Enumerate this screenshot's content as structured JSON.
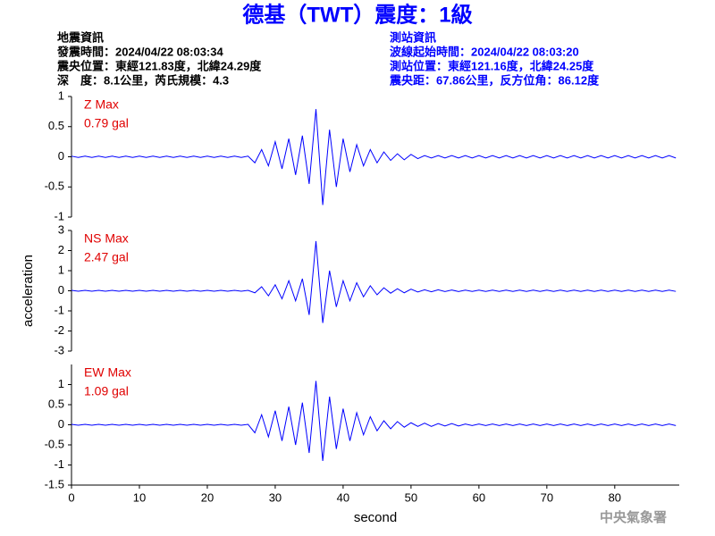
{
  "header": {
    "title": "德基（TWT）震度：1級",
    "left": [
      "地震資訊",
      "發震時間：2024/04/22 08:03:34",
      "震央位置：東經121.83度，北緯24.29度",
      "深　度：8.1公里，芮氏規模：4.3"
    ],
    "right": [
      "測站資訊",
      "波線起始時間：2024/04/22 08:03:20",
      "測站位置：東經121.16度，北緯24.25度",
      "震央距：67.86公里，反方位角：86.12度"
    ]
  },
  "footer": "中央氣象署",
  "chart_data": [
    {
      "type": "line",
      "annotations": [
        "Z Max",
        "0.79 gal"
      ],
      "color": "#0000ff",
      "xlim": [
        0,
        89.5
      ],
      "ylim": [
        -1,
        1
      ],
      "yticks": [
        -1,
        -0.5,
        0,
        0.5,
        1
      ],
      "x": [
        0,
        1,
        2,
        3,
        4,
        5,
        6,
        7,
        8,
        9,
        10,
        11,
        12,
        13,
        14,
        15,
        16,
        17,
        18,
        19,
        20,
        21,
        22,
        23,
        24,
        25,
        26,
        27,
        28,
        29,
        30,
        31,
        32,
        33,
        34,
        35,
        36,
        37,
        38,
        39,
        40,
        41,
        42,
        43,
        44,
        45,
        46,
        47,
        48,
        49,
        50,
        51,
        52,
        53,
        54,
        55,
        56,
        57,
        58,
        59,
        60,
        61,
        62,
        63,
        64,
        65,
        66,
        67,
        68,
        69,
        70,
        71,
        72,
        73,
        74,
        75,
        76,
        77,
        78,
        79,
        80,
        81,
        82,
        83,
        84,
        85,
        86,
        87,
        88,
        89
      ],
      "values": [
        0.01,
        -0.01,
        0.01,
        -0.01,
        0.01,
        -0.01,
        0.01,
        -0.01,
        0.01,
        -0.01,
        0.01,
        -0.01,
        0.01,
        -0.01,
        0.01,
        -0.01,
        0.01,
        -0.01,
        0.01,
        -0.01,
        0.01,
        -0.01,
        0.01,
        -0.01,
        0.01,
        -0.01,
        0.01,
        -0.1,
        0.12,
        -0.15,
        0.25,
        -0.2,
        0.3,
        -0.3,
        0.35,
        -0.45,
        0.79,
        -0.8,
        0.45,
        -0.5,
        0.3,
        -0.25,
        0.2,
        -0.15,
        0.12,
        -0.1,
        0.08,
        -0.06,
        0.05,
        -0.05,
        0.04,
        -0.03,
        0.02,
        -0.02,
        0.02,
        -0.02,
        0.02,
        -0.02,
        0.02,
        -0.02,
        0.02,
        -0.02,
        0.02,
        -0.02,
        0.02,
        -0.02,
        0.02,
        -0.02,
        0.02,
        -0.02,
        0.02,
        -0.02,
        0.02,
        -0.02,
        0.02,
        -0.02,
        0.02,
        -0.02,
        0.02,
        -0.02,
        0.02,
        -0.02,
        0.02,
        -0.02,
        0.02,
        -0.02,
        0.02,
        -0.02,
        0.02,
        -0.02
      ]
    },
    {
      "type": "line",
      "annotations": [
        "NS Max",
        "2.47 gal"
      ],
      "color": "#0000ff",
      "xlim": [
        0,
        89.5
      ],
      "ylim": [
        -3,
        3
      ],
      "yticks": [
        -3,
        -2,
        -1,
        0,
        1,
        2,
        3
      ],
      "ylabel": "acceleration",
      "x": [
        0,
        1,
        2,
        3,
        4,
        5,
        6,
        7,
        8,
        9,
        10,
        11,
        12,
        13,
        14,
        15,
        16,
        17,
        18,
        19,
        20,
        21,
        22,
        23,
        24,
        25,
        26,
        27,
        28,
        29,
        30,
        31,
        32,
        33,
        34,
        35,
        36,
        37,
        38,
        39,
        40,
        41,
        42,
        43,
        44,
        45,
        46,
        47,
        48,
        49,
        50,
        51,
        52,
        53,
        54,
        55,
        56,
        57,
        58,
        59,
        60,
        61,
        62,
        63,
        64,
        65,
        66,
        67,
        68,
        69,
        70,
        71,
        72,
        73,
        74,
        75,
        76,
        77,
        78,
        79,
        80,
        81,
        82,
        83,
        84,
        85,
        86,
        87,
        88,
        89
      ],
      "values": [
        0.02,
        -0.02,
        0.02,
        -0.02,
        0.02,
        -0.02,
        0.02,
        -0.02,
        0.02,
        -0.02,
        0.02,
        -0.02,
        0.02,
        -0.02,
        0.02,
        -0.02,
        0.02,
        -0.02,
        0.02,
        -0.02,
        0.02,
        -0.02,
        0.02,
        -0.02,
        0.02,
        -0.02,
        0.02,
        -0.1,
        0.2,
        -0.25,
        0.3,
        -0.4,
        0.5,
        -0.5,
        0.6,
        -1.2,
        2.47,
        -1.6,
        1.0,
        -0.8,
        0.5,
        -0.5,
        0.4,
        -0.3,
        0.25,
        -0.2,
        0.15,
        -0.12,
        0.1,
        -0.1,
        0.08,
        -0.06,
        0.05,
        -0.05,
        0.05,
        -0.04,
        0.04,
        -0.04,
        0.03,
        -0.03,
        0.03,
        -0.03,
        0.03,
        -0.03,
        0.03,
        -0.03,
        0.03,
        -0.03,
        0.03,
        -0.03,
        0.03,
        -0.03,
        0.03,
        -0.03,
        0.03,
        -0.03,
        0.03,
        -0.03,
        0.03,
        -0.03,
        0.03,
        -0.03,
        0.03,
        -0.03,
        0.03,
        -0.03,
        0.03,
        -0.03,
        0.03,
        -0.03
      ]
    },
    {
      "type": "line",
      "annotations": [
        "EW Max",
        "1.09 gal"
      ],
      "color": "#0000ff",
      "xlim": [
        0,
        89.5
      ],
      "ylim": [
        -1.5,
        1.5
      ],
      "yticks": [
        -1.5,
        -1,
        -0.5,
        0,
        0.5,
        1
      ],
      "xticks": [
        0,
        10,
        20,
        30,
        40,
        50,
        60,
        70,
        80
      ],
      "xlabel": "second",
      "x": [
        0,
        1,
        2,
        3,
        4,
        5,
        6,
        7,
        8,
        9,
        10,
        11,
        12,
        13,
        14,
        15,
        16,
        17,
        18,
        19,
        20,
        21,
        22,
        23,
        24,
        25,
        26,
        27,
        28,
        29,
        30,
        31,
        32,
        33,
        34,
        35,
        36,
        37,
        38,
        39,
        40,
        41,
        42,
        43,
        44,
        45,
        46,
        47,
        48,
        49,
        50,
        51,
        52,
        53,
        54,
        55,
        56,
        57,
        58,
        59,
        60,
        61,
        62,
        63,
        64,
        65,
        66,
        67,
        68,
        69,
        70,
        71,
        72,
        73,
        74,
        75,
        76,
        77,
        78,
        79,
        80,
        81,
        82,
        83,
        84,
        85,
        86,
        87,
        88,
        89
      ],
      "values": [
        0.01,
        -0.01,
        0.01,
        -0.01,
        0.01,
        -0.01,
        0.01,
        -0.01,
        0.01,
        -0.01,
        0.01,
        -0.01,
        0.01,
        -0.01,
        0.01,
        -0.01,
        0.01,
        -0.01,
        0.01,
        -0.01,
        0.01,
        -0.01,
        0.01,
        -0.01,
        0.01,
        -0.01,
        0.01,
        -0.2,
        0.25,
        -0.3,
        0.35,
        -0.4,
        0.45,
        -0.5,
        0.55,
        -0.7,
        1.09,
        -0.9,
        0.7,
        -0.6,
        0.4,
        -0.4,
        0.3,
        -0.25,
        0.2,
        -0.15,
        0.1,
        -0.1,
        0.08,
        -0.06,
        0.05,
        -0.04,
        0.04,
        -0.04,
        0.03,
        -0.03,
        0.03,
        -0.03,
        0.02,
        -0.02,
        0.02,
        -0.02,
        0.02,
        -0.02,
        0.02,
        -0.02,
        0.02,
        -0.02,
        0.02,
        -0.02,
        0.02,
        -0.02,
        0.02,
        -0.02,
        0.02,
        -0.02,
        0.02,
        -0.02,
        0.02,
        -0.02,
        0.02,
        -0.02,
        0.02,
        -0.02,
        0.02,
        -0.02,
        0.02,
        -0.02,
        0.02,
        -0.02
      ]
    }
  ]
}
